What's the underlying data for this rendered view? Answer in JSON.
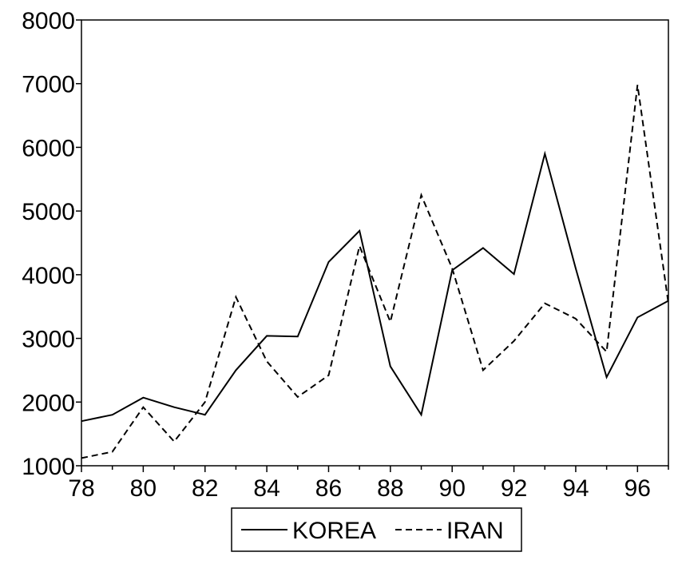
{
  "chart_data": {
    "type": "line",
    "title": "",
    "xlabel": "",
    "ylabel": "",
    "x": [
      78,
      79,
      80,
      81,
      82,
      83,
      84,
      85,
      86,
      87,
      88,
      89,
      90,
      91,
      92,
      93,
      94,
      95,
      96,
      97
    ],
    "xlim": [
      78,
      97
    ],
    "ylim": [
      1000,
      8000
    ],
    "x_ticks": [
      78,
      80,
      82,
      84,
      86,
      88,
      90,
      92,
      94,
      96
    ],
    "x_tick_labels": [
      "78",
      "80",
      "82",
      "84",
      "86",
      "88",
      "90",
      "92",
      "94",
      "96"
    ],
    "y_ticks": [
      1000,
      2000,
      3000,
      4000,
      5000,
      6000,
      7000,
      8000
    ],
    "y_tick_labels": [
      "1000",
      "2000",
      "3000",
      "4000",
      "5000",
      "6000",
      "7000",
      "8000"
    ],
    "grid": false,
    "legend_position": "bottom",
    "series": [
      {
        "name": "KOREA",
        "style": "solid",
        "color": "#000000",
        "values": [
          1700,
          1800,
          2070,
          1920,
          1800,
          2500,
          3040,
          3030,
          4200,
          4690,
          2560,
          1800,
          4070,
          4420,
          4010,
          5900,
          4100,
          2390,
          3330,
          3590
        ]
      },
      {
        "name": "IRAN",
        "style": "dashed",
        "color": "#000000",
        "values": [
          1120,
          1220,
          1920,
          1380,
          2000,
          3650,
          2640,
          2080,
          2420,
          4450,
          3260,
          5250,
          4100,
          2500,
          2960,
          3550,
          3310,
          2790,
          6980,
          3550
        ]
      }
    ]
  }
}
